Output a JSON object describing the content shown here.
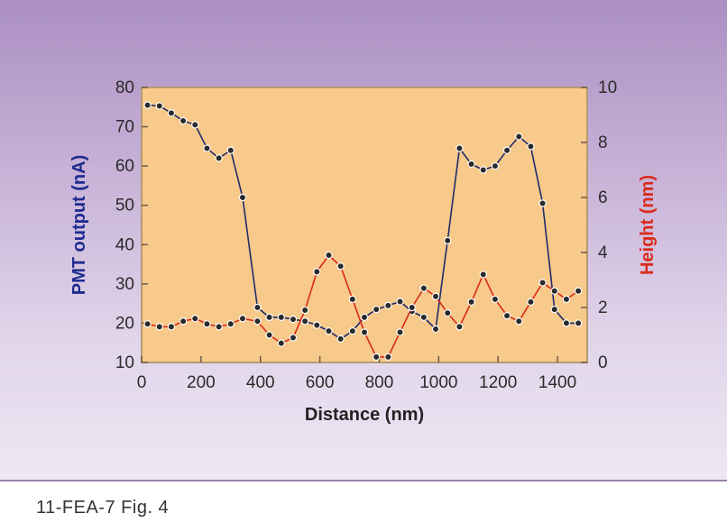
{
  "caption": "11-FEA-7  Fig. 4",
  "chart_data": {
    "type": "line",
    "title": "",
    "xlabel": "Distance (nm)",
    "xlim": [
      0,
      1500
    ],
    "xticks": [
      "0",
      "200",
      "400",
      "600",
      "800",
      "1000",
      "1200",
      "1400"
    ],
    "ylabel_left": "PMT output (nA)",
    "ylim_left": [
      10,
      80
    ],
    "yticks_left": [
      "10",
      "20",
      "30",
      "40",
      "50",
      "60",
      "70",
      "80"
    ],
    "ylabel_right": "Height (nm)",
    "ylim_right": [
      0,
      10
    ],
    "yticks_right": [
      "0",
      "2",
      "4",
      "6",
      "8",
      "10"
    ],
    "grid": false,
    "legend": "none",
    "colors": {
      "pmt": "#1f2b6b",
      "height": "#d92a1c",
      "plot_bg": "#f7c98a",
      "pmt_label": "#1f2b8f",
      "height_label": "#d92a1c"
    },
    "series": [
      {
        "axis": "left",
        "color": "#1f2b6b",
        "x": [
          20,
          60,
          100,
          140,
          180,
          220,
          260,
          300,
          340,
          390,
          430,
          470,
          510,
          550,
          590,
          630,
          670,
          710,
          750,
          790,
          830,
          870,
          910,
          950,
          990,
          1030,
          1070,
          1110,
          1150,
          1190,
          1230,
          1270,
          1310,
          1350,
          1390,
          1430,
          1470
        ],
        "values": [
          75.5,
          75.3,
          73.5,
          71.5,
          70.5,
          64.5,
          62,
          64,
          52,
          24,
          21.5,
          21.5,
          21,
          20.5,
          19.5,
          18,
          16,
          18,
          21.5,
          23.5,
          24.5,
          25.5,
          23,
          21.5,
          18.5,
          41,
          64.5,
          60.5,
          59,
          60,
          64,
          67.5,
          65,
          50.5,
          23.5,
          20,
          20
        ]
      },
      {
        "axis": "right",
        "color": "#d92a1c",
        "x": [
          20,
          60,
          100,
          140,
          180,
          220,
          260,
          300,
          340,
          390,
          430,
          470,
          510,
          550,
          590,
          630,
          670,
          710,
          750,
          790,
          830,
          870,
          910,
          950,
          990,
          1030,
          1070,
          1110,
          1150,
          1190,
          1230,
          1270,
          1310,
          1350,
          1390,
          1430,
          1470
        ],
        "values": [
          1.4,
          1.3,
          1.3,
          1.5,
          1.6,
          1.4,
          1.3,
          1.4,
          1.6,
          1.5,
          1.0,
          0.7,
          0.9,
          1.9,
          3.3,
          3.9,
          3.5,
          2.3,
          1.1,
          0.2,
          0.2,
          1.1,
          2.0,
          2.7,
          2.4,
          1.8,
          1.3,
          2.2,
          3.2,
          2.3,
          1.7,
          1.5,
          2.2,
          2.9,
          2.6,
          2.3,
          2.6
        ]
      }
    ]
  }
}
